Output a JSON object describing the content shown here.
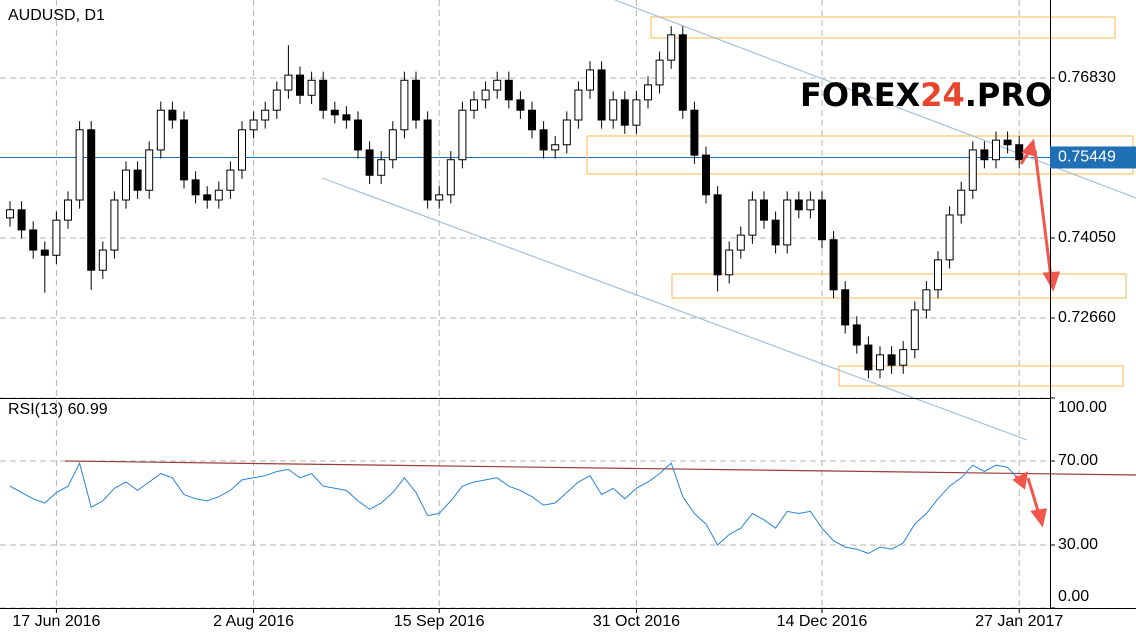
{
  "chart_data": {
    "type": "candlestick",
    "title": "AUDUSD, D1",
    "watermark": [
      "FOREX",
      "24",
      ".PRO"
    ],
    "categories": [
      null,
      null,
      null,
      null,
      "17 Jun 2016",
      null,
      null,
      null,
      null,
      null,
      null,
      null,
      null,
      null,
      null,
      null,
      null,
      null,
      null,
      null,
      null,
      "2 Aug 2016",
      null,
      null,
      null,
      null,
      null,
      null,
      null,
      null,
      null,
      null,
      null,
      null,
      null,
      null,
      null,
      "15 Sep 2016",
      null,
      null,
      null,
      null,
      null,
      null,
      null,
      null,
      null,
      null,
      null,
      null,
      null,
      null,
      null,
      null,
      "31 Oct 2016",
      null,
      null,
      null,
      null,
      null,
      null,
      null,
      null,
      null,
      null,
      null,
      null,
      null,
      null,
      null,
      "14 Dec 2016",
      null,
      null,
      null,
      null,
      null,
      null,
      null,
      null,
      null,
      null,
      null,
      null,
      null,
      null,
      null,
      null,
      "27 Jan 2017"
    ],
    "open": [
      0.744,
      0.7454,
      0.7419,
      0.7384,
      0.7375,
      0.7436,
      0.7471,
      0.7593,
      0.7349,
      0.7384,
      0.7471,
      0.7523,
      0.7488,
      0.7558,
      0.7627,
      0.761,
      0.7506,
      0.748,
      0.7471,
      0.7488,
      0.7523,
      0.7593,
      0.761,
      0.7627,
      0.7662,
      0.7688,
      0.7653,
      0.7679,
      0.7627,
      0.7619,
      0.761,
      0.7558,
      0.7514,
      0.7541,
      0.7593,
      0.7679,
      0.761,
      0.7471,
      0.748,
      0.7541,
      0.7627,
      0.7645,
      0.7662,
      0.7679,
      0.7645,
      0.7627,
      0.7593,
      0.7558,
      0.7567,
      0.761,
      0.7662,
      0.7697,
      0.761,
      0.7645,
      0.7601,
      0.7645,
      0.7671,
      0.7714,
      0.7758,
      0.7627,
      0.7549,
      0.748,
      0.7341,
      0.7384,
      0.741,
      0.7471,
      0.7436,
      0.7393,
      0.7471,
      0.7454,
      0.7471,
      0.7402,
      0.7315,
      0.7254,
      0.7219,
      0.7176,
      0.7202,
      0.7184,
      0.7211,
      0.728,
      0.7315,
      0.7367,
      0.7445,
      0.7488,
      0.7558,
      0.7541,
      0.7575,
      0.7567
    ],
    "high": [
      0.7469,
      0.7469,
      0.7434,
      0.7399,
      0.7451,
      0.7486,
      0.7608,
      0.7608,
      0.7399,
      0.7486,
      0.7538,
      0.7538,
      0.7573,
      0.7642,
      0.7642,
      0.7625,
      0.7521,
      0.7495,
      0.7503,
      0.7538,
      0.7608,
      0.7625,
      0.7642,
      0.7677,
      0.774,
      0.7703,
      0.7694,
      0.7694,
      0.7642,
      0.7634,
      0.7625,
      0.7573,
      0.7556,
      0.7608,
      0.7694,
      0.7694,
      0.7625,
      0.7495,
      0.7556,
      0.7642,
      0.766,
      0.7677,
      0.7694,
      0.7694,
      0.766,
      0.7642,
      0.7608,
      0.7582,
      0.7625,
      0.7677,
      0.7712,
      0.7712,
      0.766,
      0.766,
      0.766,
      0.7686,
      0.7729,
      0.7773,
      0.7773,
      0.7642,
      0.7564,
      0.7495,
      0.7399,
      0.7425,
      0.7486,
      0.7486,
      0.7451,
      0.7486,
      0.7486,
      0.7486,
      0.7486,
      0.7417,
      0.733,
      0.7269,
      0.7234,
      0.7217,
      0.7217,
      0.7226,
      0.7295,
      0.733,
      0.7382,
      0.746,
      0.7503,
      0.7573,
      0.7573,
      0.759,
      0.759,
      0.7582
    ],
    "low": [
      0.7425,
      0.7404,
      0.7369,
      0.731,
      0.736,
      0.7421,
      0.7456,
      0.7315,
      0.7334,
      0.7369,
      0.7456,
      0.7473,
      0.7473,
      0.7543,
      0.7595,
      0.7491,
      0.7465,
      0.7456,
      0.7456,
      0.7473,
      0.7508,
      0.7578,
      0.7595,
      0.7612,
      0.7647,
      0.7638,
      0.7638,
      0.7612,
      0.7604,
      0.7595,
      0.7543,
      0.7499,
      0.7499,
      0.7526,
      0.7578,
      0.7595,
      0.7456,
      0.7456,
      0.7465,
      0.7526,
      0.7612,
      0.763,
      0.7647,
      0.763,
      0.7612,
      0.7578,
      0.7543,
      0.7543,
      0.7552,
      0.7595,
      0.7647,
      0.7595,
      0.7595,
      0.7586,
      0.7586,
      0.763,
      0.7656,
      0.7699,
      0.7612,
      0.7534,
      0.7465,
      0.7312,
      0.7326,
      0.7369,
      0.7395,
      0.7421,
      0.7378,
      0.7378,
      0.7439,
      0.7439,
      0.7387,
      0.73,
      0.7239,
      0.7204,
      0.7161,
      0.7161,
      0.7169,
      0.7169,
      0.7196,
      0.7265,
      0.73,
      0.7352,
      0.743,
      0.7473,
      0.7526,
      0.7526,
      0.7552,
      0.7526
    ],
    "close": [
      0.7454,
      0.7419,
      0.7384,
      0.7375,
      0.7436,
      0.7471,
      0.7593,
      0.7349,
      0.7384,
      0.7471,
      0.7523,
      0.7488,
      0.7558,
      0.7627,
      0.761,
      0.7506,
      0.748,
      0.7471,
      0.7488,
      0.7523,
      0.7593,
      0.761,
      0.7627,
      0.7662,
      0.7688,
      0.7653,
      0.7679,
      0.7627,
      0.7619,
      0.761,
      0.7558,
      0.7514,
      0.7541,
      0.7593,
      0.7679,
      0.761,
      0.7471,
      0.748,
      0.7541,
      0.7627,
      0.7645,
      0.7662,
      0.7679,
      0.7645,
      0.7627,
      0.7593,
      0.7558,
      0.7567,
      0.761,
      0.7662,
      0.7697,
      0.761,
      0.7645,
      0.7601,
      0.7645,
      0.7671,
      0.7714,
      0.7758,
      0.7627,
      0.7549,
      0.748,
      0.7341,
      0.7384,
      0.741,
      0.7471,
      0.7436,
      0.7393,
      0.7471,
      0.7454,
      0.7471,
      0.7402,
      0.7315,
      0.7254,
      0.7219,
      0.7176,
      0.7202,
      0.7184,
      0.7211,
      0.728,
      0.7315,
      0.7367,
      0.7445,
      0.7488,
      0.7558,
      0.7541,
      0.7575,
      0.7567,
      0.7541
    ],
    "up_color": "#ffffff",
    "down_color": "#000000",
    "ylim": [
      0.7127,
      0.78185
    ],
    "yticks": [
      {
        "value": 0.7683,
        "label": "0.76830"
      },
      {
        "value": 0.7405,
        "label": "0.74050"
      },
      {
        "value": 0.7266,
        "label": "0.72660"
      }
    ],
    "grid": true,
    "last_price": 0.75449,
    "last_price_color": "#1f6fb5",
    "rsi": {
      "title": "RSI(13) 60.99",
      "color": "#2a84d8",
      "values": [
        58,
        55,
        52,
        50,
        55,
        58,
        69,
        48,
        51,
        57,
        60,
        56,
        60,
        64,
        62,
        54,
        52,
        51,
        53,
        56,
        61,
        62,
        63,
        65,
        66,
        62,
        64,
        58,
        57,
        56,
        51,
        47,
        50,
        55,
        62,
        55,
        44,
        45,
        51,
        58,
        60,
        61,
        62,
        58,
        56,
        53,
        49,
        50,
        55,
        60,
        63,
        54,
        57,
        52,
        57,
        60,
        64,
        69,
        53,
        45,
        40,
        30,
        35,
        38,
        45,
        42,
        38,
        46,
        45,
        46,
        38,
        32,
        29,
        28,
        26,
        29,
        28,
        31,
        40,
        45,
        52,
        58,
        62,
        68,
        65,
        68,
        67,
        61
      ],
      "ylim": [
        0,
        100
      ],
      "yticks": [
        {
          "value": 100,
          "label": "100.00"
        },
        {
          "value": 70,
          "label": "70.00"
        },
        {
          "value": 30,
          "label": "30.00"
        },
        {
          "value": 0,
          "label": "0.00"
        }
      ]
    }
  }
}
